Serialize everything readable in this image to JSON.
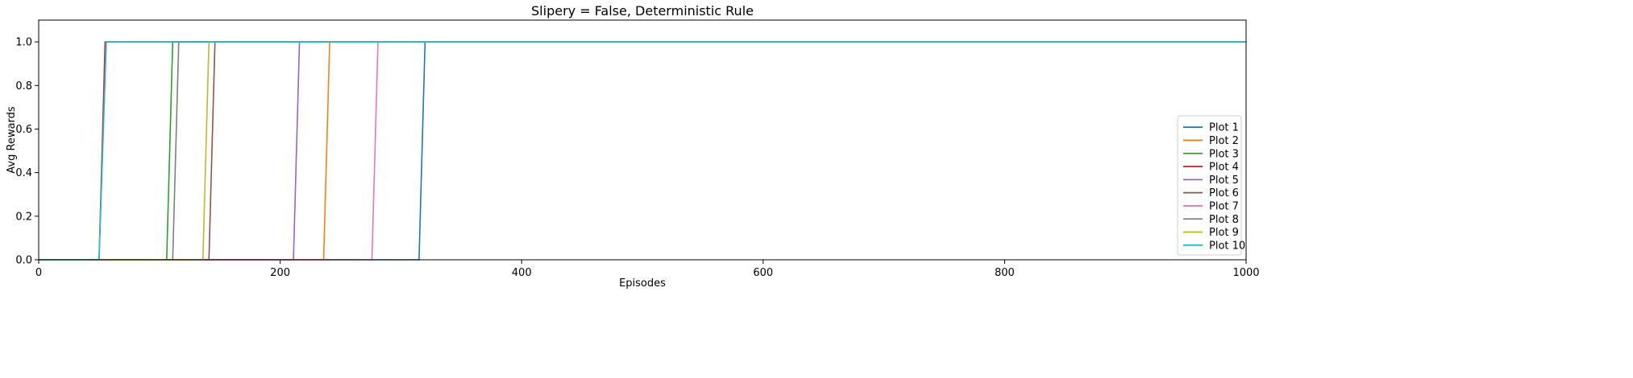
{
  "chart_data": {
    "type": "line",
    "title": "Slipery = False, Deterministic Rule",
    "xlabel": "Episodes",
    "ylabel": "Avg Rewards",
    "xlim": [
      0,
      1000
    ],
    "ylim": [
      0,
      1.1
    ],
    "xticks": [
      0,
      200,
      400,
      600,
      800,
      1000
    ],
    "xtick_labels": [
      "0",
      "200",
      "400",
      "600",
      "800",
      "1000"
    ],
    "yticks": [
      0.0,
      0.2,
      0.4,
      0.6,
      0.8,
      1.0
    ],
    "ytick_labels": [
      "0.0",
      "0.2",
      "0.4",
      "0.6",
      "0.8",
      "1.0"
    ],
    "grid": false,
    "legend_position": "lower-right",
    "series": [
      {
        "name": "Plot 1",
        "color": "#1f77b4",
        "x": [
          0,
          315,
          320,
          1000
        ],
        "y": [
          0,
          0,
          1,
          1
        ]
      },
      {
        "name": "Plot 2",
        "color": "#ff7f0e",
        "x": [
          0,
          236,
          241,
          1000
        ],
        "y": [
          0,
          0,
          1,
          1
        ]
      },
      {
        "name": "Plot 3",
        "color": "#2ca02c",
        "x": [
          0,
          106,
          111,
          1000
        ],
        "y": [
          0,
          0,
          1,
          1
        ]
      },
      {
        "name": "Plot 4",
        "color": "#d62728",
        "x": [
          0,
          50,
          55,
          1000
        ],
        "y": [
          0,
          0,
          1,
          1
        ]
      },
      {
        "name": "Plot 5",
        "color": "#9467bd",
        "x": [
          0,
          211,
          216,
          1000
        ],
        "y": [
          0,
          0,
          1,
          1
        ]
      },
      {
        "name": "Plot 6",
        "color": "#8c564b",
        "x": [
          0,
          141,
          146,
          1000
        ],
        "y": [
          0,
          0,
          1,
          1
        ]
      },
      {
        "name": "Plot 7",
        "color": "#e377c2",
        "x": [
          0,
          276,
          281,
          1000
        ],
        "y": [
          0,
          0,
          1,
          1
        ]
      },
      {
        "name": "Plot 8",
        "color": "#7f7f7f",
        "x": [
          0,
          111,
          116,
          1000
        ],
        "y": [
          0,
          0,
          1,
          1
        ]
      },
      {
        "name": "Plot 9",
        "color": "#bcbd22",
        "x": [
          0,
          136,
          141,
          1000
        ],
        "y": [
          0,
          0,
          1,
          1
        ]
      },
      {
        "name": "Plot 10",
        "color": "#17becf",
        "x": [
          0,
          50,
          56,
          1000
        ],
        "y": [
          0,
          0,
          1,
          1
        ]
      }
    ]
  }
}
